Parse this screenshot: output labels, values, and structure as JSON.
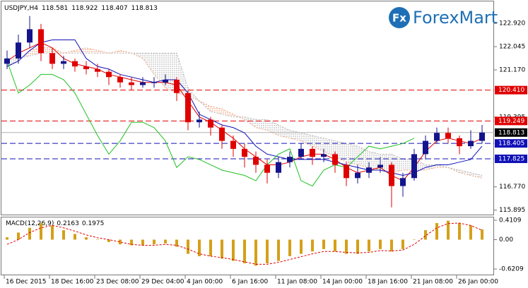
{
  "logo": {
    "icon": "Fx",
    "name": "ForexMart"
  },
  "chart_data": {
    "type": "candlestick",
    "title": "USDJPY,H4",
    "header_values": [
      118.581,
      118.922,
      118.407,
      118.813
    ],
    "x": [
      2,
      6,
      10,
      14,
      18,
      22,
      26,
      30,
      34,
      38,
      42,
      46,
      50,
      54,
      58,
      62,
      66,
      70,
      74,
      78,
      82,
      86,
      90,
      94,
      98,
      102,
      106,
      110,
      114,
      118,
      122,
      126,
      130,
      134,
      138,
      142,
      146,
      150,
      154,
      158,
      162,
      166,
      170
    ],
    "xlim": [
      0,
      174
    ],
    "xticks": [
      {
        "value": 1,
        "label": "16 Dec 2015"
      },
      {
        "value": 17,
        "label": "18 Dec 16:00"
      },
      {
        "value": 33,
        "label": "23 Dec 08:00"
      },
      {
        "value": 49,
        "label": "29 Dec 04:00"
      },
      {
        "value": 65,
        "label": "4 Jan 00:00"
      },
      {
        "value": 81,
        "label": "6 Jan 16:00"
      },
      {
        "value": 97,
        "label": "11 Jan 08:00"
      },
      {
        "value": 113,
        "label": "14 Jan 00:00"
      },
      {
        "value": 129,
        "label": "18 Jan 16:00"
      },
      {
        "value": 145,
        "label": "21 Jan 08:00"
      },
      {
        "value": 161,
        "label": "26 Jan 00:00"
      }
    ],
    "ylim": [
      115.7,
      123.8
    ],
    "yticks": [
      {
        "value": 122.92,
        "label": "122.920"
      },
      122.045,
      {
        "value": 121.17,
        "label": "121.170"
      },
      119.395,
      {
        "value": 116.77,
        "label": "116.770"
      },
      115.895
    ],
    "open": [
      121.4,
      121.6,
      122.2,
      122.7,
      121.8,
      121.4,
      121.5,
      121.3,
      121.2,
      121.1,
      120.9,
      120.7,
      120.6,
      120.7,
      120.7,
      120.8,
      120.3,
      119.2,
      119.3,
      119.0,
      118.5,
      118.2,
      117.9,
      117.6,
      117.3,
      117.7,
      117.9,
      118.2,
      117.9,
      118.0,
      117.6,
      117.1,
      117.3,
      117.5,
      117.6,
      116.8,
      117.1,
      118.0,
      118.5,
      118.8,
      118.6,
      118.3,
      118.5
    ],
    "high": [
      121.9,
      122.5,
      123.2,
      122.9,
      122.0,
      121.7,
      121.6,
      121.5,
      121.4,
      121.2,
      121.0,
      120.9,
      120.9,
      120.9,
      121.0,
      120.9,
      120.4,
      119.6,
      119.4,
      119.1,
      118.7,
      118.4,
      118.1,
      117.8,
      117.9,
      118.1,
      118.4,
      118.3,
      118.2,
      118.1,
      117.7,
      117.6,
      117.7,
      117.9,
      117.7,
      117.3,
      118.2,
      118.7,
      119.0,
      119.0,
      118.7,
      118.9,
      119.1
    ],
    "low": [
      121.2,
      121.4,
      122.0,
      121.5,
      121.2,
      121.2,
      121.1,
      121.0,
      120.9,
      120.6,
      120.5,
      120.4,
      120.5,
      120.5,
      120.6,
      120.0,
      118.9,
      119.0,
      118.7,
      118.2,
      117.9,
      117.5,
      117.3,
      116.9,
      117.1,
      117.5,
      117.8,
      117.6,
      117.7,
      117.3,
      116.8,
      116.9,
      117.1,
      117.3,
      116.0,
      116.4,
      117.0,
      117.8,
      118.4,
      118.4,
      118.0,
      118.2,
      118.4
    ],
    "close": [
      121.6,
      122.2,
      122.7,
      121.8,
      121.4,
      121.5,
      121.3,
      121.2,
      121.1,
      120.9,
      120.7,
      120.6,
      120.7,
      120.7,
      120.8,
      120.3,
      119.2,
      119.3,
      119.0,
      118.5,
      118.2,
      117.9,
      117.6,
      117.3,
      117.7,
      117.9,
      118.2,
      117.9,
      118.0,
      117.6,
      117.1,
      117.3,
      117.5,
      117.6,
      116.8,
      117.1,
      118.0,
      118.5,
      118.8,
      118.6,
      118.3,
      118.5,
      118.813
    ],
    "up_color": "#14148c",
    "down_color": "#e00000",
    "indicators": [
      {
        "color": "#e00000",
        "values": [
          121.5,
          121.8,
          122.0,
          122.2,
          122.0,
          121.6,
          121.4,
          121.3,
          121.2,
          121.0,
          120.9,
          120.8,
          120.7,
          120.7,
          120.7,
          120.6,
          120.0,
          119.4,
          119.2,
          118.9,
          118.6,
          118.2,
          117.9,
          117.6,
          117.6,
          117.7,
          117.9,
          118.0,
          118.0,
          117.8,
          117.5,
          117.3,
          117.4,
          117.5,
          117.2,
          117.0,
          117.5,
          118.1,
          118.5,
          118.6,
          118.5,
          118.4,
          118.6
        ]
      },
      {
        "color": "#1010b8",
        "values": [
          121.3,
          121.5,
          121.9,
          122.2,
          122.3,
          122.3,
          122.3,
          121.6,
          121.3,
          121.2,
          121.0,
          120.9,
          120.8,
          120.7,
          120.8,
          120.8,
          120.3,
          119.5,
          119.3,
          119.1,
          119.0,
          118.8,
          118.3,
          118.0,
          117.9,
          117.8,
          117.8,
          117.8,
          117.8,
          117.7,
          117.6,
          117.5,
          117.4,
          117.4,
          117.3,
          117.2,
          117.3,
          117.5,
          117.6,
          117.6,
          117.7,
          117.8,
          118.3
        ]
      },
      {
        "color": "#22c022",
        "values": [
          121.5,
          120.3,
          120.6,
          121.0,
          121.0,
          120.8,
          120.3,
          119.5,
          118.7,
          118.0,
          118.5,
          119.2,
          119.2,
          119.0,
          118.5,
          117.5,
          117.9,
          117.8,
          117.6,
          117.4,
          117.3,
          117.2,
          117.0,
          117.6,
          118.0,
          118.2,
          117.0,
          116.8,
          117.4,
          117.6,
          117.5,
          117.9,
          118.3,
          118.2,
          118.3,
          118.4,
          118.6,
          null,
          null,
          null,
          null,
          null,
          null
        ]
      }
    ],
    "cloud": {
      "span_a": [
        121.3,
        121.5,
        121.9,
        122.0,
        122.0,
        121.8,
        121.9,
        122.0,
        121.9,
        121.8,
        121.9,
        121.8,
        121.6,
        121.0,
        120.5,
        120.3,
        120.2,
        120.0,
        119.8,
        119.7,
        119.5,
        119.3,
        119.0,
        118.9,
        118.7,
        118.6,
        118.5,
        118.3,
        118.1,
        117.9,
        117.7,
        117.6,
        117.5,
        117.4,
        117.3,
        117.4,
        117.4,
        117.4,
        117.5,
        117.5,
        117.3,
        117.2,
        117.1
      ],
      "span_b": [
        121.6,
        121.6,
        121.7,
        121.8,
        121.8,
        121.8,
        121.8,
        121.8,
        121.8,
        121.8,
        121.8,
        121.8,
        121.8,
        121.8,
        121.8,
        121.8,
        120.5,
        120.0,
        119.6,
        119.5,
        119.4,
        119.4,
        119.3,
        119.3,
        119.1,
        118.9,
        118.8,
        118.7,
        118.6,
        118.5,
        118.4,
        118.3,
        118.1,
        118.0,
        118.0,
        117.8,
        117.8,
        117.6,
        117.6,
        117.5,
        117.4,
        117.3,
        117.2
      ],
      "color_a": "#f0a080",
      "color_b": "#b4b4b4"
    },
    "levels": [
      {
        "value": 120.41,
        "label": "120.410",
        "color": "#e00000",
        "style": "dashed"
      },
      {
        "value": 119.249,
        "color": "#e00000",
        "style": "dashed"
      },
      {
        "value": 118.813,
        "color": "#b0b0b0",
        "style": "solid",
        "label_color": "#000000"
      },
      {
        "value": 118.405,
        "color": "#1010b8",
        "style": "dashed"
      },
      {
        "value": 117.825,
        "color": "#1010b8",
        "style": "dashed"
      }
    ],
    "macd": {
      "title": "MACD(12,26,9)",
      "main_value": 0.2163,
      "signal_value": 0.1975,
      "ylim": [
        -0.754,
        0.485
      ],
      "yticks": [
        0.4109,
        {
          "value": 0,
          "label": "0.00"
        },
        -0.6209
      ],
      "hist_color": "#d4a017",
      "signal_color": "#e00000",
      "histogram": [
        0.05,
        0.15,
        0.25,
        0.35,
        0.3,
        0.2,
        0.12,
        0.05,
        0.0,
        -0.05,
        -0.1,
        -0.12,
        -0.12,
        -0.1,
        -0.08,
        -0.15,
        -0.3,
        -0.35,
        -0.35,
        -0.4,
        -0.45,
        -0.5,
        -0.55,
        -0.5,
        -0.45,
        -0.35,
        -0.3,
        -0.25,
        -0.2,
        -0.25,
        -0.3,
        -0.3,
        -0.25,
        -0.2,
        -0.25,
        -0.2,
        0.0,
        0.2,
        0.35,
        0.4,
        0.35,
        0.3,
        0.2163
      ],
      "signal": [
        -0.1,
        0.0,
        0.15,
        0.25,
        0.3,
        0.25,
        0.18,
        0.1,
        0.04,
        0.0,
        -0.05,
        -0.1,
        -0.12,
        -0.12,
        -0.1,
        -0.12,
        -0.2,
        -0.3,
        -0.35,
        -0.38,
        -0.42,
        -0.47,
        -0.52,
        -0.52,
        -0.48,
        -0.42,
        -0.36,
        -0.3,
        -0.25,
        -0.25,
        -0.27,
        -0.28,
        -0.27,
        -0.23,
        -0.24,
        -0.22,
        -0.1,
        0.08,
        0.25,
        0.34,
        0.35,
        0.3,
        0.1975
      ]
    }
  }
}
